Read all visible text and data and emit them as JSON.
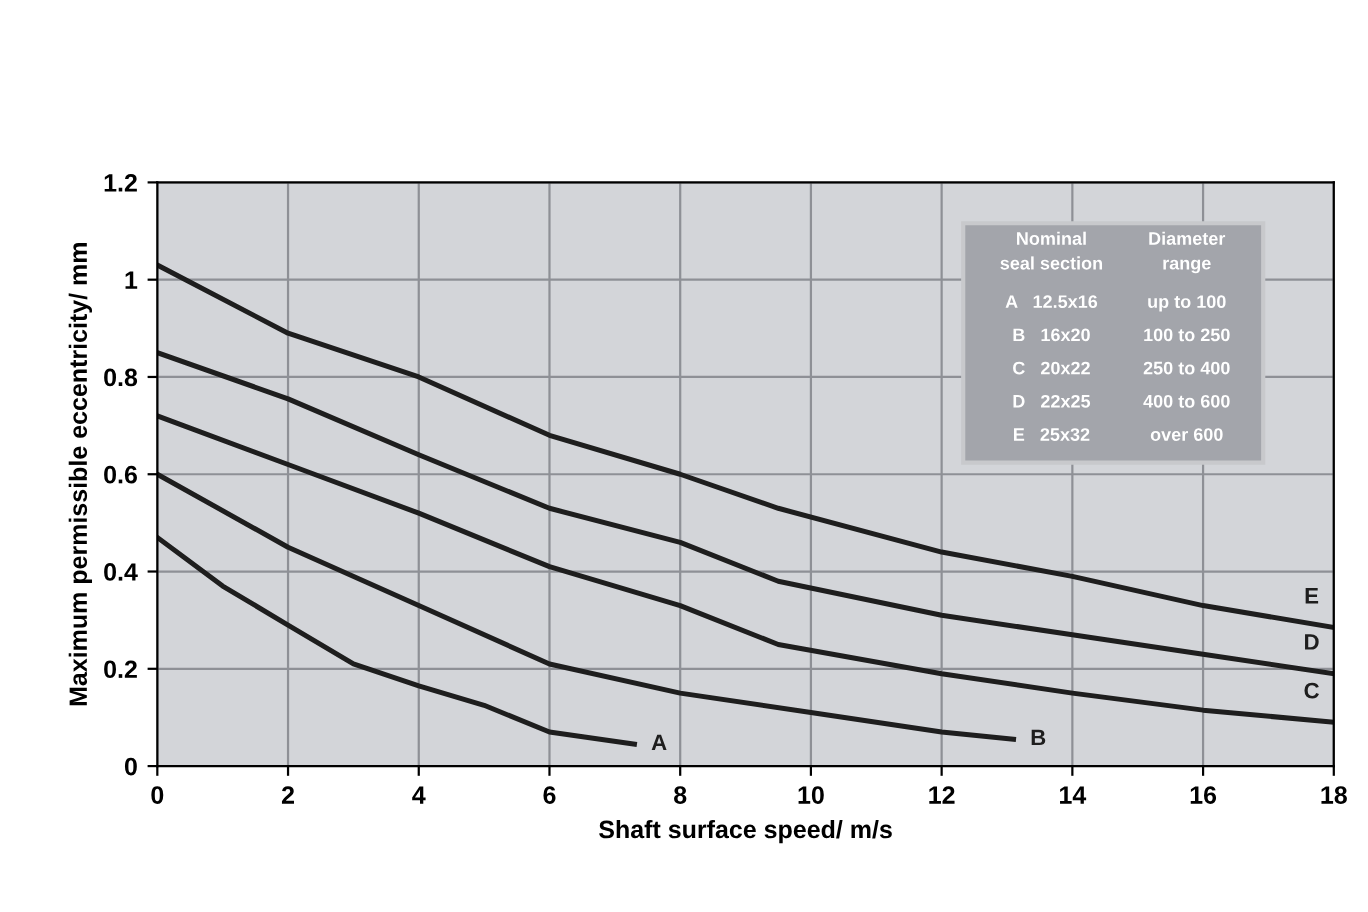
{
  "chart_data": {
    "type": "line",
    "xlabel": "Shaft surface speed/ m/s",
    "ylabel": "Maximum permissible eccentricity/ mm",
    "series": [
      {
        "color": "#1e1e1e",
        "x": [
          0,
          1,
          2,
          3,
          4,
          5,
          6,
          7.3
        ],
        "values": [
          0.47,
          0.37,
          0.29,
          0.21,
          0.165,
          0.125,
          0.07,
          0.045
        ]
      },
      {
        "color": "#1e1e1e",
        "x": [
          0,
          2,
          4,
          6,
          8,
          10,
          12,
          13.1
        ],
        "values": [
          0.6,
          0.45,
          0.33,
          0.21,
          0.15,
          0.11,
          0.07,
          0.055
        ]
      },
      {
        "color": "#1e1e1e",
        "x": [
          0,
          2,
          4,
          6,
          8,
          9.5,
          12,
          14,
          16,
          18
        ],
        "values": [
          0.72,
          0.62,
          0.52,
          0.41,
          0.33,
          0.25,
          0.19,
          0.15,
          0.115,
          0.09
        ]
      },
      {
        "color": "#1e1e1e",
        "x": [
          0,
          2,
          4,
          6,
          8,
          9.5,
          12,
          14,
          16,
          18
        ],
        "values": [
          0.85,
          0.755,
          0.64,
          0.53,
          0.46,
          0.38,
          0.31,
          0.27,
          0.23,
          0.19
        ]
      },
      {
        "color": "#1e1e1e",
        "x": [
          0,
          2,
          4,
          6,
          8,
          9.5,
          12,
          14,
          16,
          18
        ],
        "values": [
          1.03,
          0.89,
          0.8,
          0.68,
          0.6,
          0.53,
          0.44,
          0.39,
          0.33,
          0.285
        ]
      }
    ],
    "annotations": [
      "A",
      "B",
      "C",
      "D",
      "E",
      "Nominal\nseal section",
      "Diameter\nrange",
      "A   12.5x16",
      "up to 100",
      "B   16x20",
      "100 to 250",
      "C   20x22",
      "250 to 400",
      "D   22x25",
      "400 to 600",
      "E   25x32",
      "over 600"
    ],
    "xlim": [
      0,
      18
    ],
    "xticks": [
      0,
      2,
      4,
      6,
      8,
      10,
      12,
      14,
      16,
      18
    ],
    "ylim": [
      0,
      1.2
    ],
    "yticks": [
      0,
      0.2,
      0.4,
      0.6,
      0.8,
      1,
      1.2
    ],
    "grid": true,
    "marker": "none",
    "line_style": "solid"
  }
}
